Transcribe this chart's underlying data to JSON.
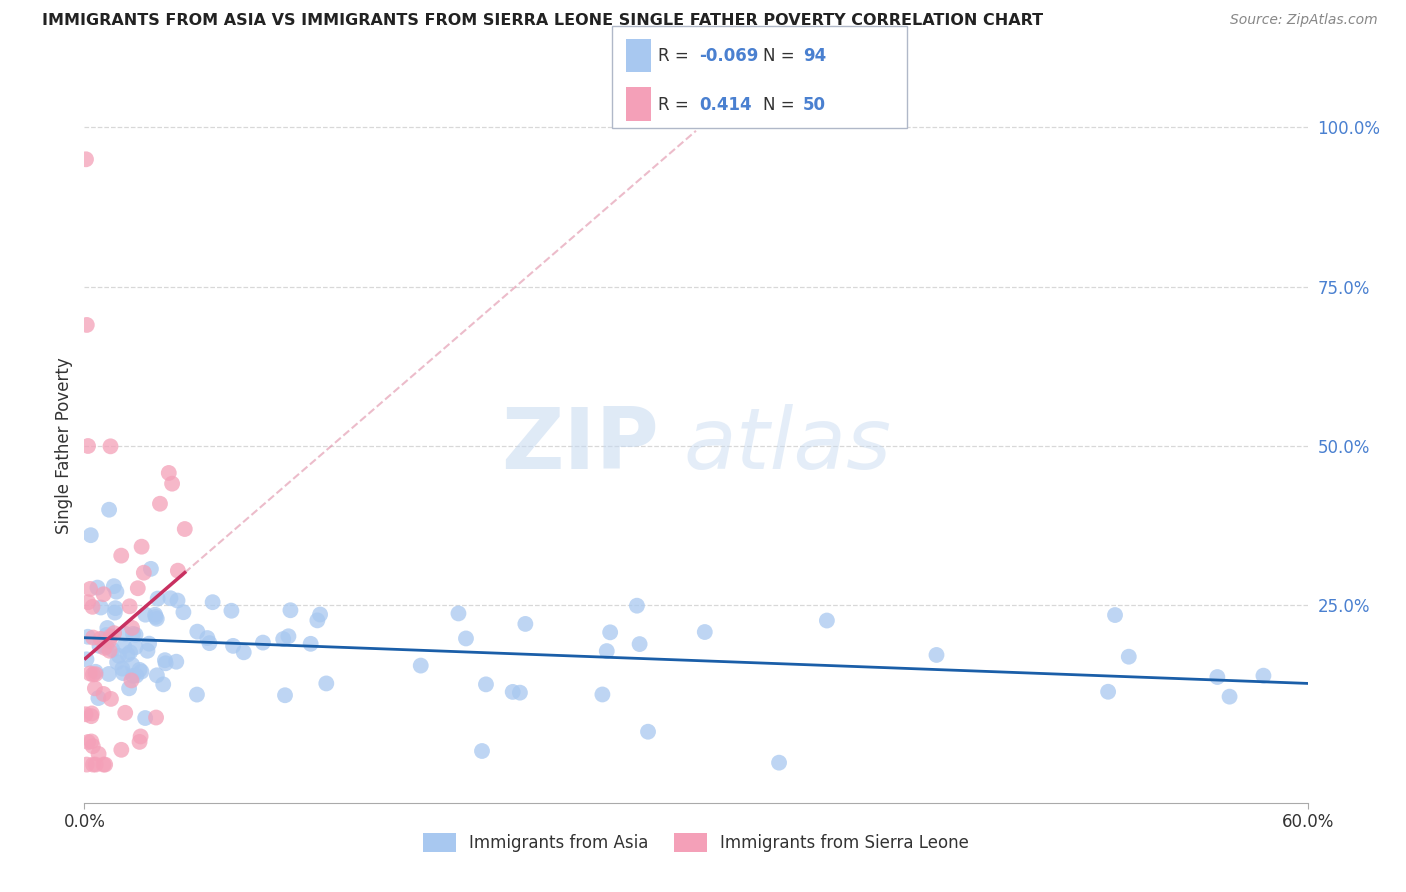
{
  "title": "IMMIGRANTS FROM ASIA VS IMMIGRANTS FROM SIERRA LEONE SINGLE FATHER POVERTY CORRELATION CHART",
  "source": "Source: ZipAtlas.com",
  "ylabel": "Single Father Poverty",
  "watermark_zip": "ZIP",
  "watermark_atlas": "atlas",
  "asia_color": "#a8c8f0",
  "sl_color": "#f4a0b8",
  "asia_trend_color": "#1a5ea8",
  "sl_trend_color": "#c83060",
  "sl_trend_dash_color": "#e090a8",
  "bg_color": "#ffffff",
  "grid_color": "#d8d8d8",
  "xmin": 0.0,
  "xmax": 0.6,
  "ymin": -0.06,
  "ymax": 1.06,
  "right_ytick_vals": [
    1.0,
    0.75,
    0.5,
    0.25
  ],
  "right_ytick_labels": [
    "100.0%",
    "75.0%",
    "50.0%",
    "25.0%"
  ],
  "legend_R_asia": "-0.069",
  "legend_N_asia": "94",
  "legend_R_sl": "0.414",
  "legend_N_sl": "50",
  "text_color_dark": "#333333",
  "text_color_blue": "#4a80d0",
  "text_color_source": "#888888"
}
